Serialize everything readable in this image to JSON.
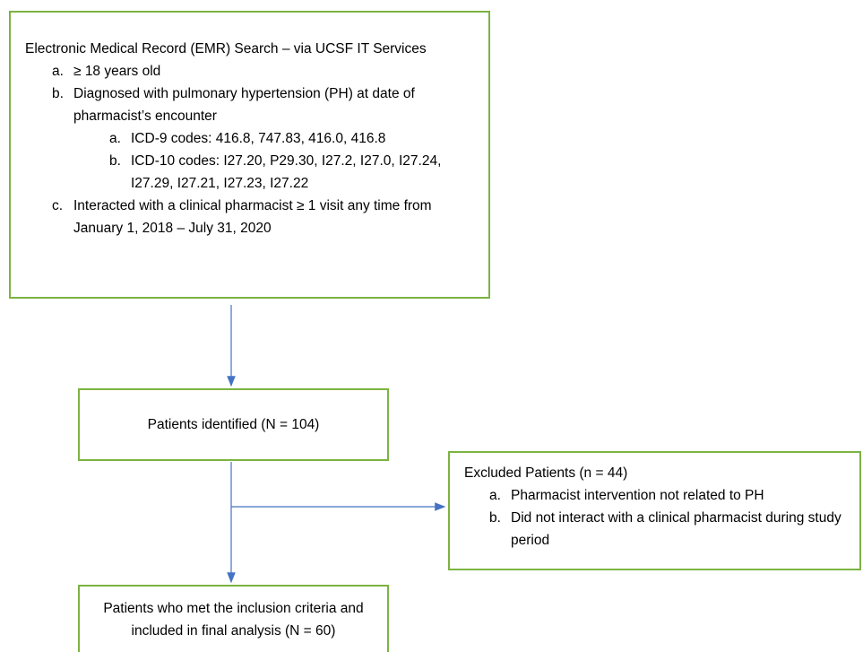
{
  "nodes": [
    {
      "title": "Electronic Medical Record (EMR) Search – via UCSF IT Services",
      "items": [
        {
          "marker": "a.",
          "text": "≥ 18 years old"
        },
        {
          "marker": "b.",
          "text": "Diagnosed with pulmonary hypertension (PH) at date of pharmacist’s encounter",
          "subitems": [
            {
              "marker": "a.",
              "text": "ICD-9 codes: 416.8, 747.83, 416.0, 416.8"
            },
            {
              "marker": "b.",
              "text": "ICD-10 codes: I27.20, P29.30, I27.2, I27.0, I27.24, I27.29, I27.21, I27.23, I27.22"
            }
          ]
        },
        {
          "marker": "c.",
          "text": "Interacted with a clinical pharmacist ≥ 1 visit any time from January 1, 2018 – July 31, 2020"
        }
      ]
    },
    {
      "title": "Patients identified (N = 104)"
    },
    {
      "title": "Excluded Patients (n = 44)",
      "items": [
        {
          "marker": "a.",
          "text": "Pharmacist intervention not related to PH"
        },
        {
          "marker": "b.",
          "text": "Did not interact with a clinical pharmacist during study period"
        }
      ]
    },
    {
      "title": "Patients who met the inclusion criteria and included in final analysis (N = 60)"
    }
  ]
}
